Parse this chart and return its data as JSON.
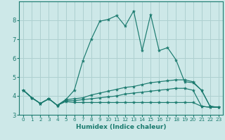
{
  "title": "",
  "xlabel": "Humidex (Indice chaleur)",
  "bg_color": "#cde8e8",
  "grid_color": "#aed0d0",
  "line_color": "#1a7a6e",
  "xlim": [
    -0.5,
    23.5
  ],
  "ylim": [
    3.0,
    9.0
  ],
  "yticks": [
    3,
    4,
    5,
    6,
    7,
    8
  ],
  "xticks": [
    0,
    1,
    2,
    3,
    4,
    5,
    6,
    7,
    8,
    9,
    10,
    11,
    12,
    13,
    14,
    15,
    16,
    17,
    18,
    19,
    20,
    21,
    22,
    23
  ],
  "series": [
    {
      "x": [
        0,
        1,
        2,
        3,
        4,
        5,
        6,
        7,
        8,
        9,
        10,
        11,
        12,
        13,
        14,
        15,
        16,
        17,
        18,
        19,
        20,
        21,
        22,
        23
      ],
      "y": [
        4.3,
        3.9,
        3.6,
        3.85,
        3.5,
        3.8,
        4.3,
        5.85,
        7.0,
        7.95,
        8.05,
        8.25,
        7.7,
        8.5,
        6.4,
        8.3,
        6.4,
        6.55,
        5.9,
        4.75,
        4.7,
        4.3,
        3.45,
        3.4
      ]
    },
    {
      "x": [
        0,
        1,
        2,
        3,
        4,
        5,
        6,
        7,
        8,
        9,
        10,
        11,
        12,
        13,
        14,
        15,
        16,
        17,
        18,
        19,
        20,
        21,
        22,
        23
      ],
      "y": [
        4.3,
        3.9,
        3.6,
        3.85,
        3.5,
        3.8,
        3.85,
        3.9,
        4.05,
        4.15,
        4.25,
        4.35,
        4.45,
        4.5,
        4.6,
        4.7,
        4.75,
        4.8,
        4.85,
        4.85,
        4.75,
        4.3,
        3.45,
        3.4
      ]
    },
    {
      "x": [
        0,
        1,
        2,
        3,
        4,
        5,
        6,
        7,
        8,
        9,
        10,
        11,
        12,
        13,
        14,
        15,
        16,
        17,
        18,
        19,
        20,
        21,
        22,
        23
      ],
      "y": [
        4.3,
        3.9,
        3.6,
        3.85,
        3.5,
        3.75,
        3.75,
        3.8,
        3.85,
        3.9,
        3.95,
        4.0,
        4.1,
        4.15,
        4.2,
        4.25,
        4.3,
        4.35,
        4.4,
        4.4,
        4.3,
        3.45,
        3.4,
        3.4
      ]
    },
    {
      "x": [
        0,
        1,
        2,
        3,
        4,
        5,
        6,
        7,
        8,
        9,
        10,
        11,
        12,
        13,
        14,
        15,
        16,
        17,
        18,
        19,
        20,
        21,
        22,
        23
      ],
      "y": [
        4.3,
        3.9,
        3.6,
        3.85,
        3.5,
        3.7,
        3.65,
        3.65,
        3.65,
        3.65,
        3.65,
        3.65,
        3.65,
        3.65,
        3.65,
        3.65,
        3.65,
        3.65,
        3.65,
        3.65,
        3.65,
        3.45,
        3.4,
        3.4
      ]
    }
  ]
}
